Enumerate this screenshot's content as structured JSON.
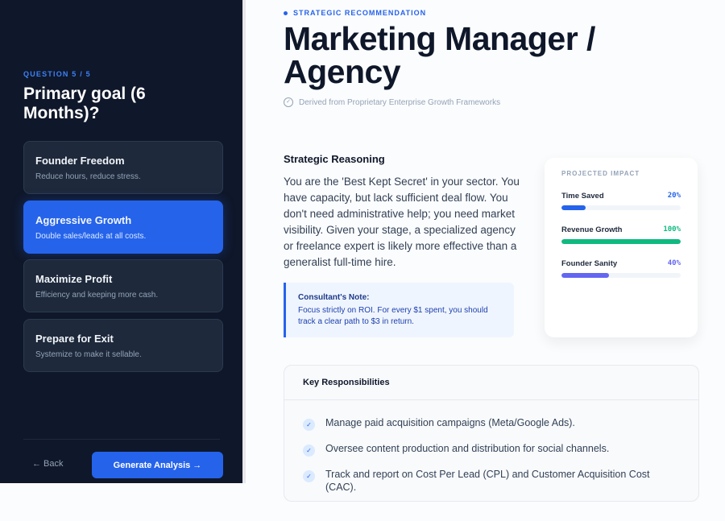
{
  "sidebar": {
    "question_label": "QUESTION 5 / 5",
    "question_title": "Primary goal (6 Months)?",
    "options": [
      {
        "title": "Founder Freedom",
        "desc": "Reduce hours, reduce stress.",
        "selected": false
      },
      {
        "title": "Aggressive Growth",
        "desc": "Double sales/leads at all costs.",
        "selected": true
      },
      {
        "title": "Maximize Profit",
        "desc": "Efficiency and keeping more cash.",
        "selected": false
      },
      {
        "title": "Prepare for Exit",
        "desc": "Systemize to make it sellable.",
        "selected": false
      }
    ],
    "back_label": "← Back",
    "generate_label": "Generate Analysis →"
  },
  "main": {
    "eyebrow": "STRATEGIC RECOMMENDATION",
    "title": "Marketing Manager / Agency",
    "derived": "Derived from Proprietary Enterprise Growth Frameworks",
    "reasoning_heading": "Strategic Reasoning",
    "reasoning_text": "You are the 'Best Kept Secret' in your sector. You have capacity, but lack sufficient deal flow. You don't need administrative help; you need market visibility. Given your stage, a specialized agency or freelance expert is likely more effective than a generalist full-time hire.",
    "note_heading": "Consultant's Note:",
    "note_text": "Focus strictly on ROI. For every $1 spent, you should track a clear path to $3 in return.",
    "impact": {
      "heading": "PROJECTED IMPACT",
      "metrics": [
        {
          "label": "Time Saved",
          "value": "20%",
          "percent": 20,
          "color": "#2563eb"
        },
        {
          "label": "Revenue Growth",
          "value": "100%",
          "percent": 100,
          "color": "#10b981"
        },
        {
          "label": "Founder Sanity",
          "value": "40%",
          "percent": 40,
          "color": "#6366f1"
        }
      ]
    },
    "responsibilities": {
      "heading": "Key Responsibilities",
      "items": [
        "Manage paid acquisition campaigns (Meta/Google Ads).",
        "Oversee content production and distribution for social channels.",
        "Track and report on Cost Per Lead (CPL) and Customer Acquisition Cost (CAC)."
      ]
    }
  }
}
